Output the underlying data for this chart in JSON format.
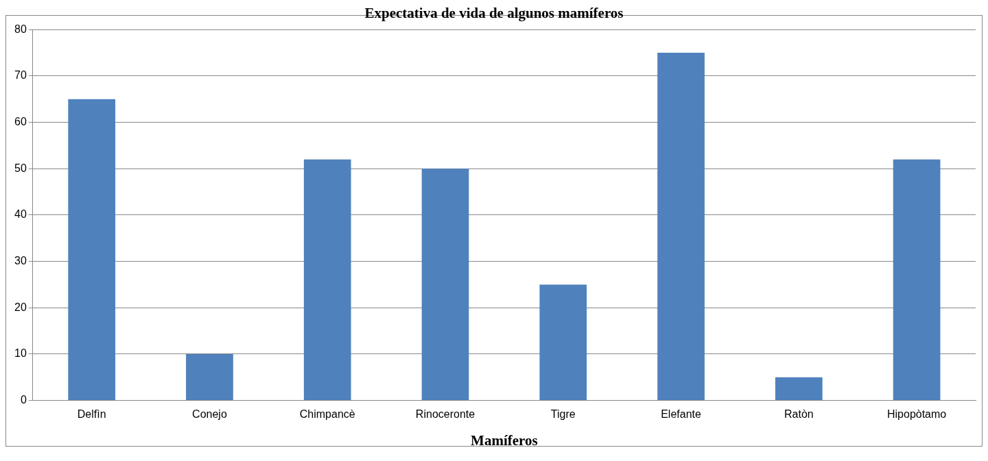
{
  "chart_data": {
    "type": "bar",
    "title": "Expectativa de vida de algunos mamíferos",
    "xlabel": "Mamíferos",
    "categories": [
      "Delfìn",
      "Conejo",
      "Chimpancè",
      "Rinoceronte",
      "Tigre",
      "Elefante",
      "Ratòn",
      "Hipopòtamo"
    ],
    "values": [
      65,
      10,
      52,
      50,
      25,
      75,
      5,
      52
    ],
    "color": "#4f81bd",
    "ylim": [
      0,
      80
    ],
    "yticks": [
      0,
      10,
      20,
      30,
      40,
      50,
      60,
      70,
      80
    ],
    "grid": "y",
    "legend": false
  }
}
